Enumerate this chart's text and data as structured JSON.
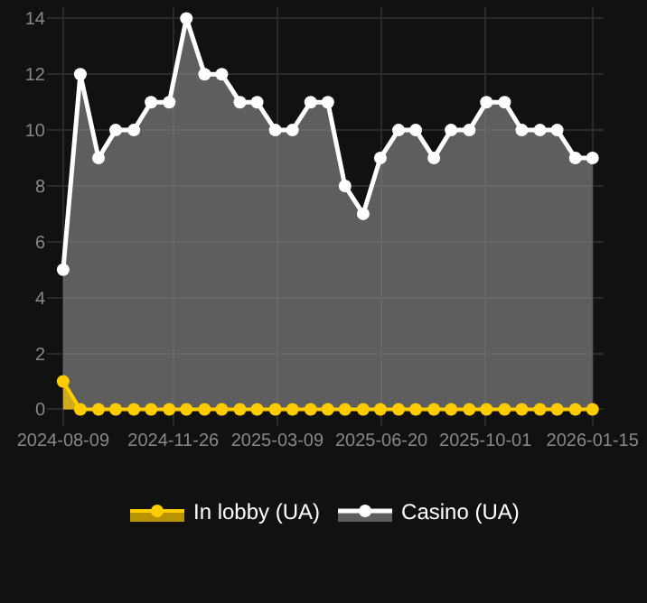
{
  "chart_data": {
    "type": "area",
    "x": [
      "2024-08-09",
      "2024-08-26",
      "2024-09-13",
      "2024-09-30",
      "2024-10-18",
      "2024-11-04",
      "2024-11-22",
      "2024-12-09",
      "2024-12-27",
      "2025-01-13",
      "2025-01-31",
      "2025-02-17",
      "2025-03-07",
      "2025-03-24",
      "2025-04-11",
      "2025-04-28",
      "2025-05-15",
      "2025-06-02",
      "2025-06-19",
      "2025-07-07",
      "2025-07-24",
      "2025-08-11",
      "2025-08-28",
      "2025-09-15",
      "2025-10-02",
      "2025-10-20",
      "2025-11-06",
      "2025-11-24",
      "2025-12-11",
      "2025-12-29",
      "2026-01-15"
    ],
    "series": [
      {
        "name": "In lobby (UA)",
        "color": "#ffcc00",
        "values": [
          1,
          0,
          0,
          0,
          0,
          0,
          0,
          0,
          0,
          0,
          0,
          0,
          0,
          0,
          0,
          0,
          0,
          0,
          0,
          0,
          0,
          0,
          0,
          0,
          0,
          0,
          0,
          0,
          0,
          0,
          0
        ]
      },
      {
        "name": "Casino (UA)",
        "color": "#ffffff",
        "values": [
          5,
          12,
          9,
          10,
          10,
          11,
          11,
          14,
          12,
          12,
          11,
          11,
          10,
          10,
          11,
          11,
          8,
          7,
          9,
          10,
          10,
          9,
          10,
          10,
          11,
          11,
          10,
          10,
          10,
          9,
          9
        ]
      }
    ],
    "xlim": [
      "2024-07-24",
      "2026-01-26"
    ],
    "xticks": [
      "2024-08-09",
      "2024-11-26",
      "2025-03-09",
      "2025-06-20",
      "2025-10-01",
      "2026-01-15"
    ],
    "ylim": [
      -0.6,
      14.4
    ],
    "yticks": [
      0,
      2,
      4,
      6,
      8,
      10,
      12,
      14
    ],
    "grid": true,
    "legend": "bottom",
    "marker": "circle",
    "line_style": "solid"
  }
}
